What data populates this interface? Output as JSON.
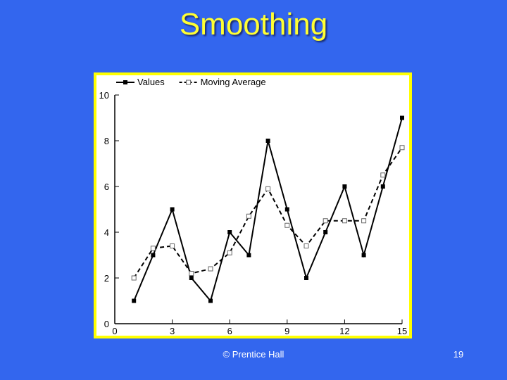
{
  "slide": {
    "title": "Smoothing",
    "footer": "© Prentice Hall",
    "page_number": "19"
  },
  "colors": {
    "background": "#3366ee",
    "title": "#ffff33",
    "frame": "#ffff00",
    "plot_bg": "#ffffff"
  },
  "chart_data": {
    "type": "line",
    "title": "",
    "xlabel": "",
    "ylabel": "",
    "xlim": [
      0,
      15
    ],
    "ylim": [
      0,
      10
    ],
    "x_ticks": [
      0,
      3,
      6,
      9,
      12,
      15
    ],
    "y_ticks": [
      0,
      2,
      4,
      6,
      8,
      10
    ],
    "grid": false,
    "legend_position": "top",
    "series": [
      {
        "name": "Values",
        "style": "solid",
        "marker": "filled-square",
        "color": "#000000",
        "x": [
          1,
          2,
          3,
          4,
          5,
          6,
          7,
          8,
          9,
          10,
          11,
          12,
          13,
          14,
          15
        ],
        "y": [
          1,
          3,
          5,
          2,
          1,
          4,
          3,
          8,
          5,
          2,
          4,
          6,
          3,
          6,
          9
        ]
      },
      {
        "name": "Moving Average",
        "style": "dashed",
        "marker": "open-square",
        "color": "#000000",
        "x": [
          1,
          2,
          3,
          4,
          5,
          6,
          7,
          8,
          9,
          10,
          11,
          12,
          13,
          14,
          15
        ],
        "y": [
          2.0,
          3.3,
          3.4,
          2.2,
          2.4,
          3.1,
          4.7,
          5.9,
          4.3,
          3.4,
          4.5,
          4.5,
          4.5,
          6.5,
          7.7
        ]
      }
    ]
  }
}
